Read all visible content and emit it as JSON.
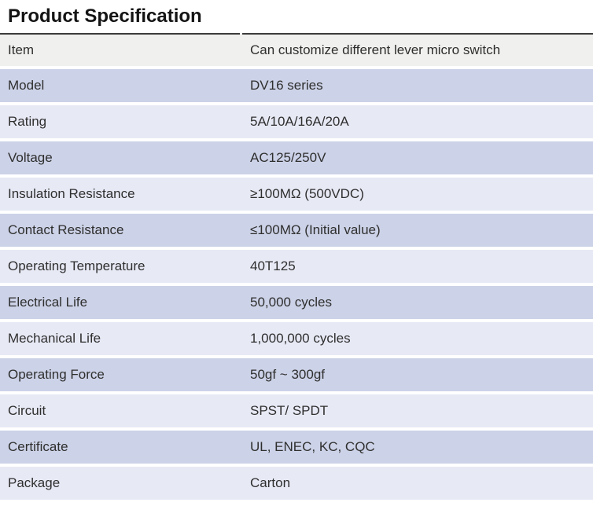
{
  "page": {
    "title": "Product Specification"
  },
  "colors": {
    "item_row_bg": "#f0f0ee",
    "row_dark_bg": "#ccd2e7",
    "row_light_bg": "#e7e9f5",
    "top_border": "#3b3b3b",
    "text": "#2f2f2f",
    "background": "#ffffff"
  },
  "table": {
    "columns": [
      "property",
      "value"
    ],
    "rows": [
      {
        "label": "Item",
        "value": "Can customize different lever micro switch",
        "shade": "gray"
      },
      {
        "label": "Model",
        "value": "DV16 series",
        "shade": "dark"
      },
      {
        "label": "Rating",
        "value": "5A/10A/16A/20A",
        "shade": "light"
      },
      {
        "label": "Voltage",
        "value": "AC125/250V",
        "shade": "dark"
      },
      {
        "label": "Insulation Resistance",
        "value": "≥100MΩ (500VDC)",
        "shade": "light"
      },
      {
        "label": "Contact Resistance",
        "value": "≤100MΩ (Initial value)",
        "shade": "dark"
      },
      {
        "label": "Operating Temperature",
        "value": "40T125",
        "shade": "light"
      },
      {
        "label": "Electrical Life",
        "value": "50,000 cycles",
        "shade": "dark"
      },
      {
        "label": "Mechanical Life",
        "value": "1,000,000 cycles",
        "shade": "light"
      },
      {
        "label": "Operating Force",
        "value": "50gf ~ 300gf",
        "shade": "dark"
      },
      {
        "label": "Circuit",
        "value": "SPST/ SPDT",
        "shade": "light"
      },
      {
        "label": "Certificate",
        "value": "UL, ENEC, KC, CQC",
        "shade": "dark"
      },
      {
        "label": "Package",
        "value": "Carton",
        "shade": "light"
      }
    ]
  }
}
